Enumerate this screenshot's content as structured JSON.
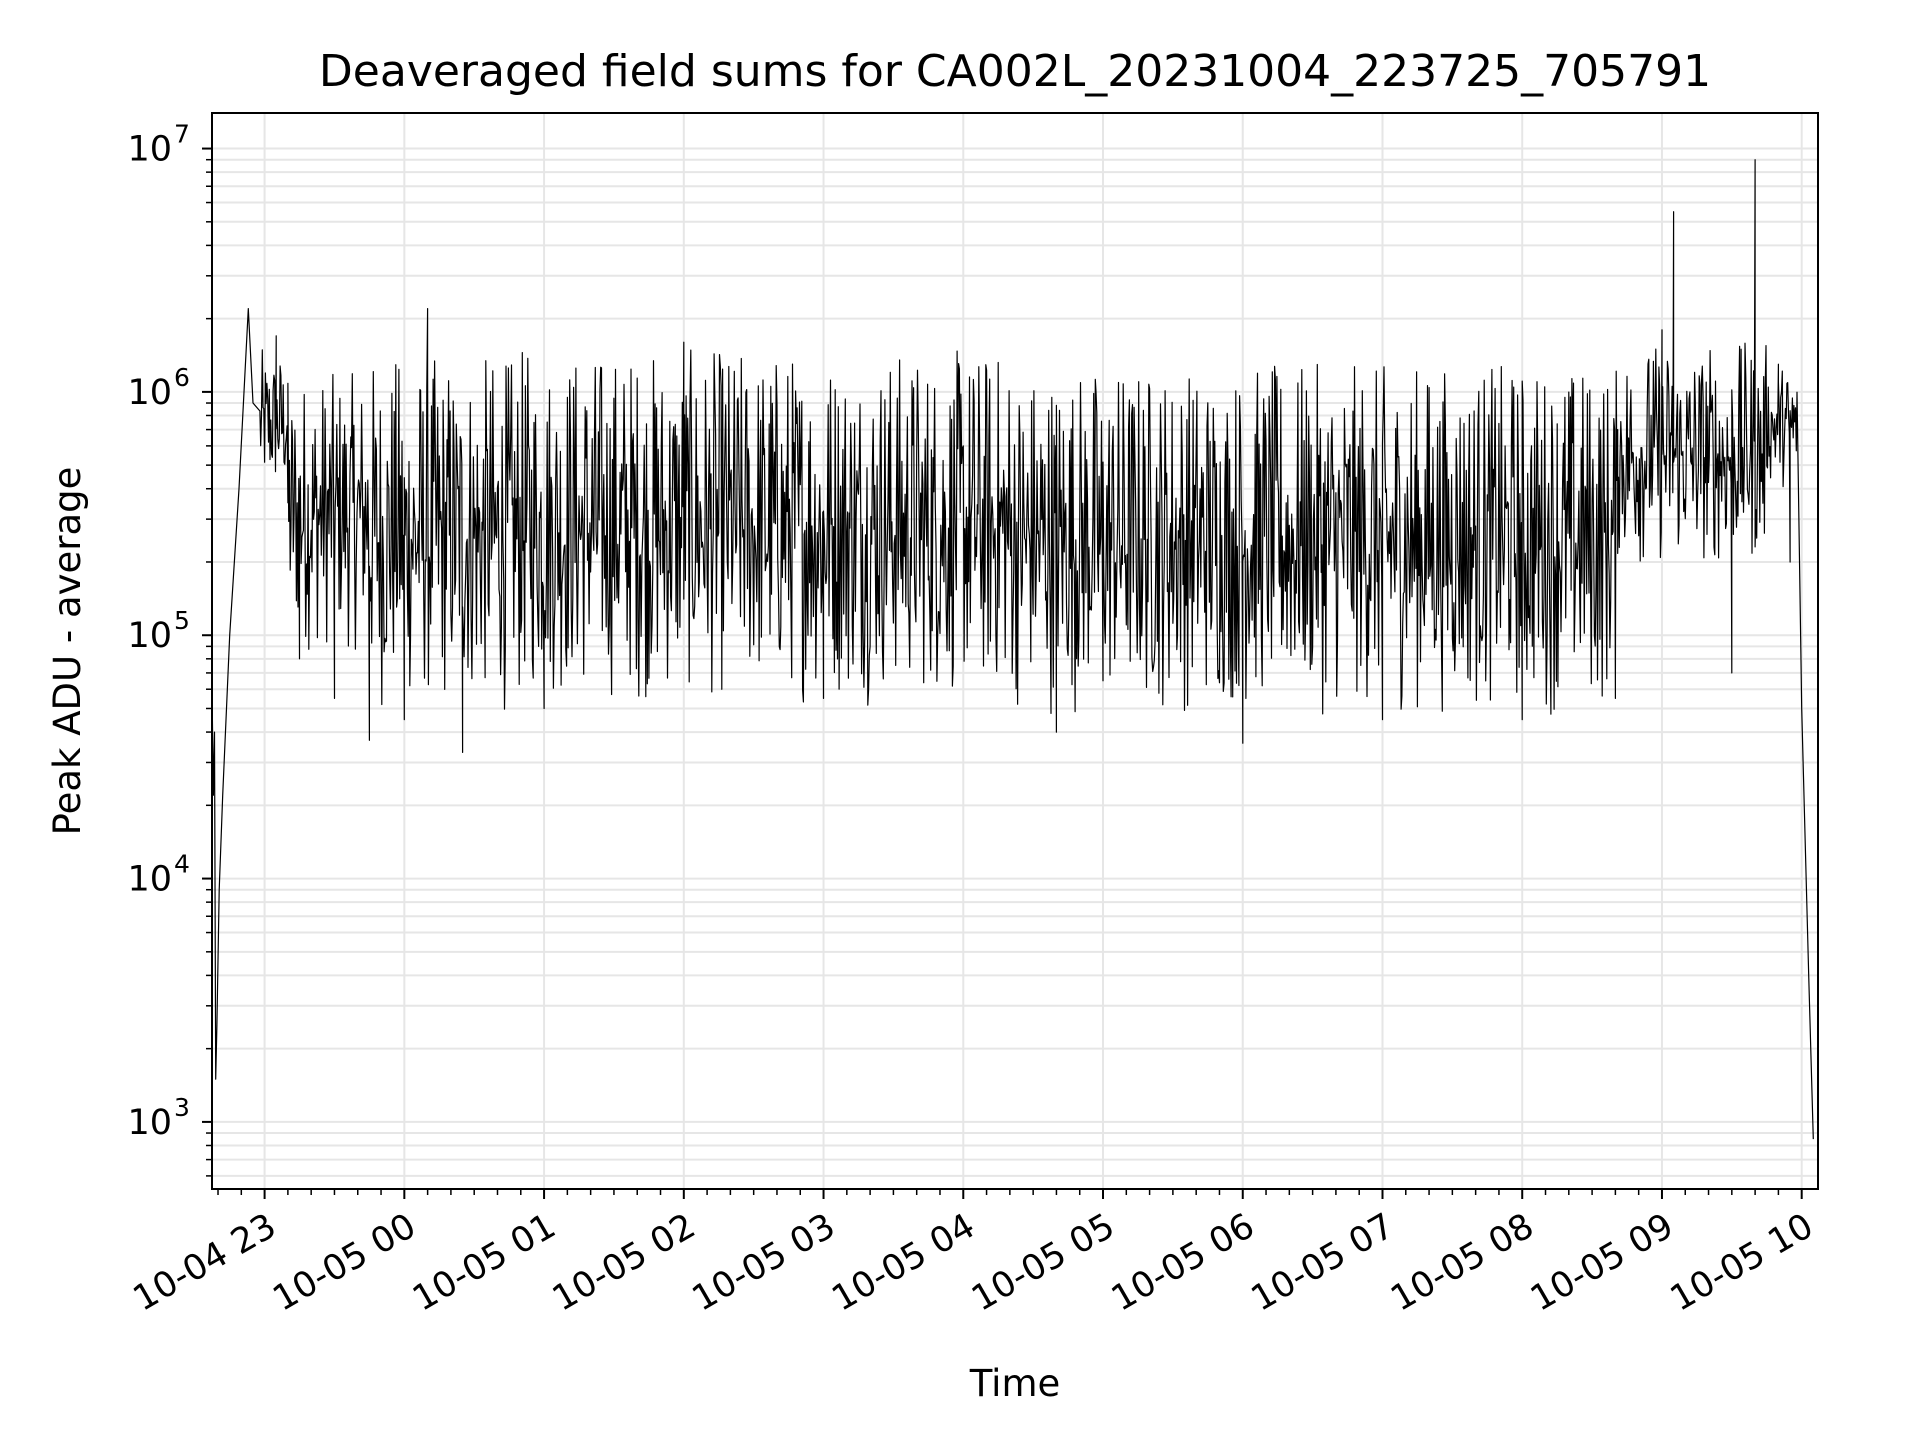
{
  "chart_data": {
    "type": "line",
    "title": "Deaveraged field sums for CA002L_20231004_223725_705791",
    "xlabel": "Time",
    "ylabel": "Peak ADU - average",
    "x_type": "datetime",
    "x_range": [
      "2023-10-04T22:37:25",
      "2023-10-05T10:07:00"
    ],
    "yscale": "log",
    "ylim": [
      530,
      14000000
    ],
    "grid": true,
    "grid_color": "#e6e6e6",
    "line_color": "#000000",
    "x_ticks": [
      {
        "label": "10-04 23",
        "time": "2023-10-04T23:00:00"
      },
      {
        "label": "10-05 00",
        "time": "2023-10-05T00:00:00"
      },
      {
        "label": "10-05 01",
        "time": "2023-10-05T01:00:00"
      },
      {
        "label": "10-05 02",
        "time": "2023-10-05T02:00:00"
      },
      {
        "label": "10-05 03",
        "time": "2023-10-05T03:00:00"
      },
      {
        "label": "10-05 04",
        "time": "2023-10-05T04:00:00"
      },
      {
        "label": "10-05 05",
        "time": "2023-10-05T05:00:00"
      },
      {
        "label": "10-05 06",
        "time": "2023-10-05T06:00:00"
      },
      {
        "label": "10-05 07",
        "time": "2023-10-05T07:00:00"
      },
      {
        "label": "10-05 08",
        "time": "2023-10-05T08:00:00"
      },
      {
        "label": "10-05 09",
        "time": "2023-10-05T09:00:00"
      },
      {
        "label": "10-05 10",
        "time": "2023-10-05T10:00:00"
      }
    ],
    "y_ticks": [
      {
        "base": "10",
        "exp": "3",
        "value": 1000
      },
      {
        "base": "10",
        "exp": "4",
        "value": 10000
      },
      {
        "base": "10",
        "exp": "5",
        "value": 100000
      },
      {
        "base": "10",
        "exp": "6",
        "value": 1000000
      },
      {
        "base": "10",
        "exp": "7",
        "value": 10000000
      }
    ],
    "series": [
      {
        "points": [
          [
            "2023-10-04T22:37:25",
            60000
          ],
          [
            "2023-10-04T22:38:00",
            22000
          ],
          [
            "2023-10-04T22:38:30",
            40000
          ],
          [
            "2023-10-04T22:39:00",
            1500
          ],
          [
            "2023-10-04T22:39:30",
            2500
          ],
          [
            "2023-10-04T22:40:30",
            9000
          ],
          [
            "2023-10-04T22:42:00",
            22000
          ],
          [
            "2023-10-04T22:45:00",
            100000
          ],
          [
            "2023-10-04T22:49:00",
            400000
          ],
          [
            "2023-10-04T22:53:00",
            2200000
          ],
          [
            "2023-10-04T22:55:00",
            900000
          ],
          [
            "2023-10-04T23:05:00",
            1700000
          ],
          [
            "2023-10-04T23:10:00",
            350000
          ],
          [
            "2023-10-04T23:15:00",
            80000
          ],
          [
            "2023-10-04T23:30:00",
            55000
          ],
          [
            "2023-10-04T23:45:00",
            37000
          ],
          [
            "2023-10-05T00:00:00",
            45000
          ],
          [
            "2023-10-05T00:10:00",
            2200000
          ],
          [
            "2023-10-05T00:25:00",
            33000
          ],
          [
            "2023-10-05T01:00:00",
            50000
          ],
          [
            "2023-10-05T02:00:00",
            1600000
          ],
          [
            "2023-10-05T03:00:00",
            55000
          ],
          [
            "2023-10-05T04:00:00",
            600000
          ],
          [
            "2023-10-05T04:40:00",
            40000
          ],
          [
            "2023-10-05T05:00:00",
            65000
          ],
          [
            "2023-10-05T06:00:00",
            36000
          ],
          [
            "2023-10-05T07:00:00",
            45000
          ],
          [
            "2023-10-05T08:00:00",
            45000
          ],
          [
            "2023-10-05T08:40:00",
            55000
          ],
          [
            "2023-10-05T08:41:00",
            700000
          ],
          [
            "2023-10-05T09:00:00",
            1800000
          ],
          [
            "2023-10-05T09:05:00",
            5500000
          ],
          [
            "2023-10-05T09:30:00",
            70000
          ],
          [
            "2023-10-05T09:40:00",
            9000000
          ],
          [
            "2023-10-05T09:50:00",
            1300000
          ],
          [
            "2023-10-05T09:55:00",
            200000
          ],
          [
            "2023-10-05T10:00:00",
            50000
          ],
          [
            "2023-10-05T10:03:00",
            4000
          ],
          [
            "2023-10-05T10:05:00",
            850
          ]
        ]
      }
    ]
  }
}
